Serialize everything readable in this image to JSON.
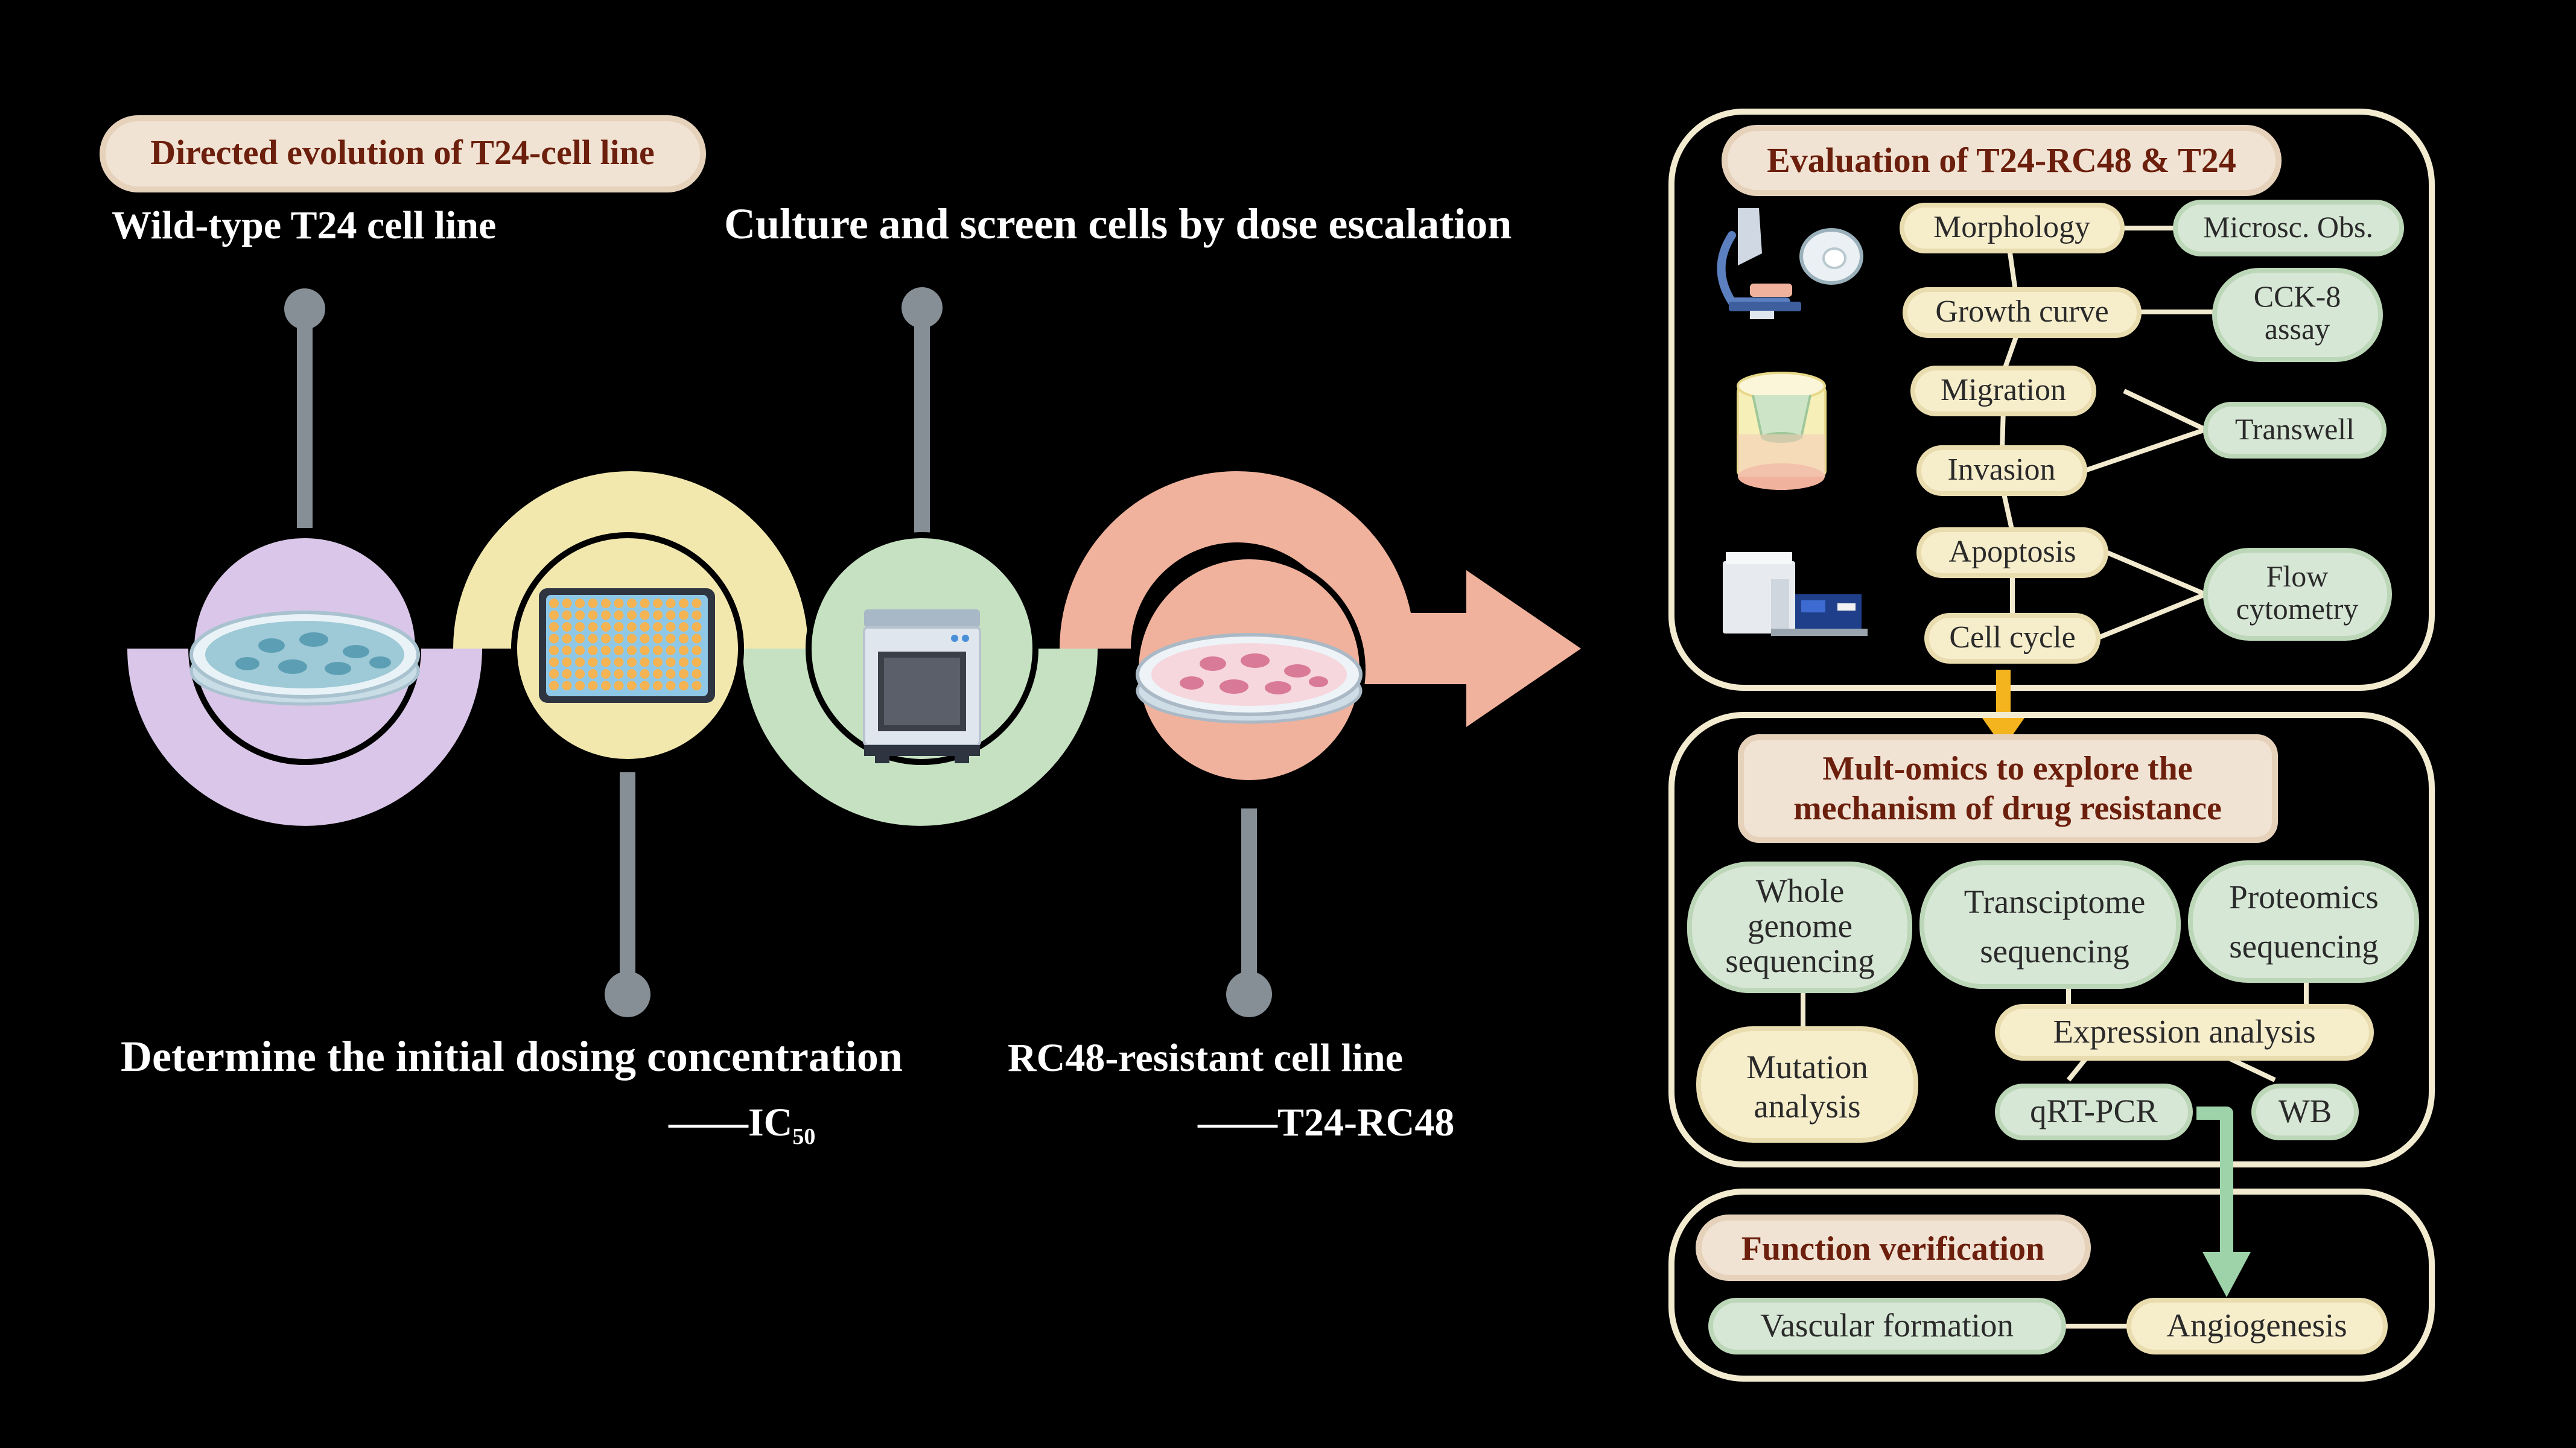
{
  "left": {
    "title": "Directed evolution of T24-cell line",
    "steps": {
      "wild_type": "Wild-type T24 cell line",
      "culture": "Culture and screen cells by dose escalation",
      "dosing": "Determine the initial dosing concentration",
      "ic50_dash": "——",
      "ic50_main": "IC",
      "ic50_sub": "50",
      "resistant": "RC48-resistant cell line",
      "t24rc48": "——T24-RC48"
    }
  },
  "evaluation": {
    "title": "Evaluation of T24-RC48 & T24",
    "assays": [
      "Morphology",
      "Growth curve",
      "Migration",
      "Invasion",
      "Apoptosis",
      "Cell cycle"
    ],
    "methods": {
      "microsc": "Microsc. Obs.",
      "cck8": [
        "CCK-8",
        "assay"
      ],
      "transwell": "Transwell",
      "flow": [
        "Flow",
        "cytometry"
      ]
    }
  },
  "omics": {
    "title": [
      "Mult-omics to explore the",
      "mechanism of drug resistance"
    ],
    "wgs": [
      "Whole",
      "genome",
      "sequencing"
    ],
    "transcriptome": [
      "Transciptome",
      "sequencing"
    ],
    "proteomics": [
      "Proteomics",
      "sequencing"
    ],
    "mutation": [
      "Mutation",
      "analysis"
    ],
    "expression": "Expression analysis",
    "qrtpcr": "qRT-PCR",
    "wb": "WB"
  },
  "function": {
    "title": "Function verification",
    "vascular": "Vascular formation",
    "angiogenesis": "Angiogenesis"
  },
  "colors": {
    "background": "#000000",
    "lavender": "#d9c6e8",
    "yellow": "#f2e8ae",
    "green": "#c5e1c1",
    "salmon": "#f0b29c",
    "pin": "#868e96",
    "title_pill": "#f1e3d3",
    "title_text": "#6b1f0c",
    "assay_pill": "#f6edcb",
    "method_pill": "#d7e7d5",
    "panel_border": "#f3ebcf",
    "arrow_orange": "#f3b41e",
    "arrow_green": "#9ed3a9"
  }
}
